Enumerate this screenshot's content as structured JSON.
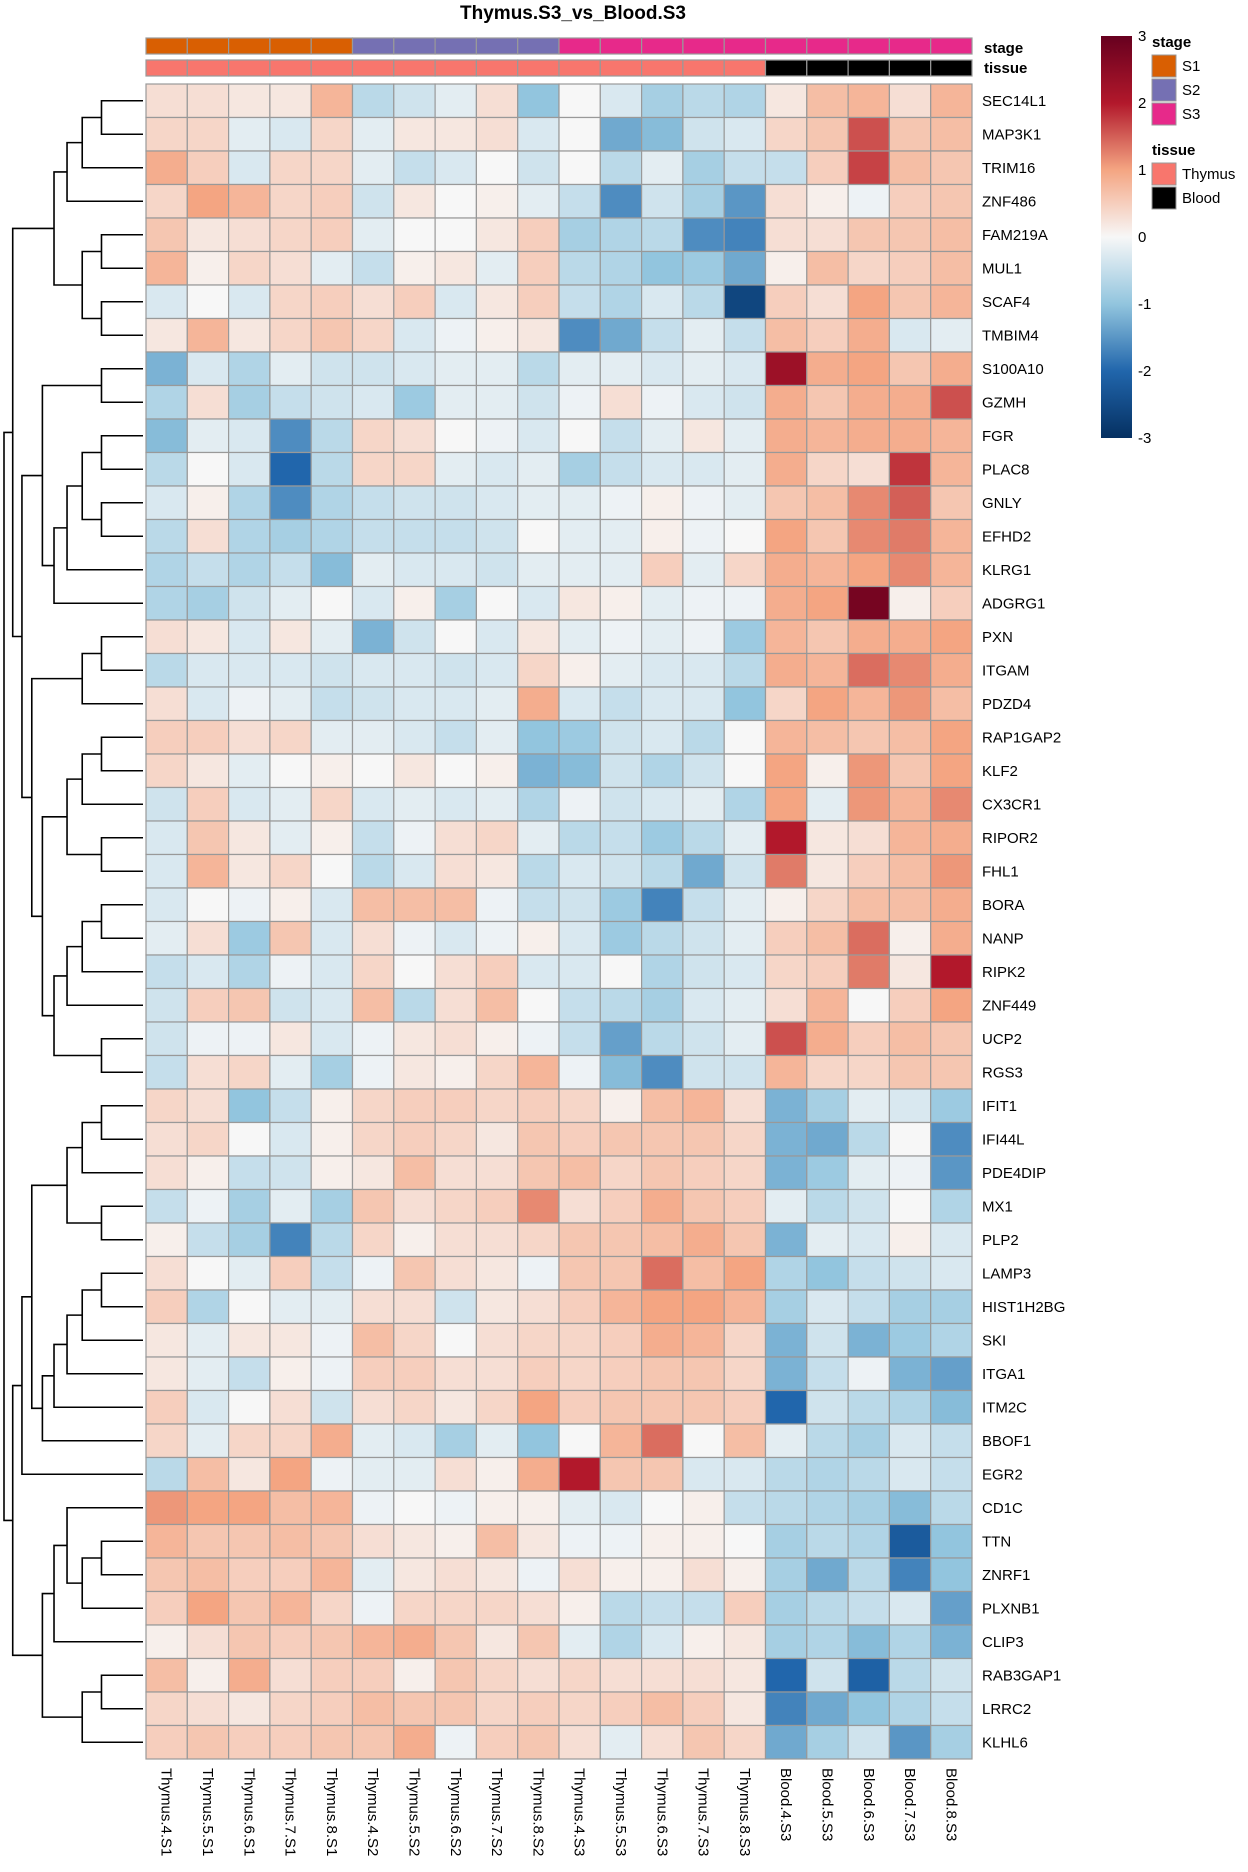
{
  "chart_data": {
    "type": "heatmap",
    "title": "Thymus.S3_vs_Blood.S3",
    "columns": [
      "Thymus.4.S1",
      "Thymus.5.S1",
      "Thymus.6.S1",
      "Thymus.7.S1",
      "Thymus.8.S1",
      "Thymus.4.S2",
      "Thymus.5.S2",
      "Thymus.6.S2",
      "Thymus.7.S2",
      "Thymus.8.S2",
      "Thymus.4.S3",
      "Thymus.5.S3",
      "Thymus.6.S3",
      "Thymus.7.S3",
      "Thymus.8.S3",
      "Blood.4.S3",
      "Blood.5.S3",
      "Blood.6.S3",
      "Blood.7.S3",
      "Blood.8.S3"
    ],
    "rows": [
      "SEC14L1",
      "MAP3K1",
      "TRIM16",
      "ZNF486",
      "FAM219A",
      "MUL1",
      "SCAF4",
      "TMBIM4",
      "S100A10",
      "GZMH",
      "FGR",
      "PLAC8",
      "GNLY",
      "EFHD2",
      "KLRG1",
      "ADGRG1",
      "PXN",
      "ITGAM",
      "PDZD4",
      "RAP1GAP2",
      "KLF2",
      "CX3CR1",
      "RIPOR2",
      "FHL1",
      "BORA",
      "NANP",
      "RIPK2",
      "ZNF449",
      "UCP2",
      "RGS3",
      "IFIT1",
      "IFI44L",
      "PDE4DIP",
      "MX1",
      "PLP2",
      "LAMP3",
      "HIST1H2BG",
      "SKI",
      "ITGA1",
      "ITM2C",
      "BBOF1",
      "EGR2",
      "CD1C",
      "TTN",
      "ZNRF1",
      "PLXNB1",
      "CLIP3",
      "RAB3GAP1",
      "LRRC2",
      "KLHL6"
    ],
    "values": [
      [
        0.3,
        0.3,
        0.2,
        0.2,
        0.8,
        -0.6,
        -0.4,
        -0.2,
        0.3,
        -1.0,
        0.0,
        -0.3,
        -0.8,
        -0.6,
        -0.7,
        0.2,
        0.7,
        0.8,
        0.3,
        0.8
      ],
      [
        0.4,
        0.4,
        -0.2,
        -0.3,
        0.4,
        -0.2,
        0.2,
        0.2,
        0.3,
        -0.3,
        0.0,
        -1.3,
        -1.1,
        -0.4,
        -0.3,
        0.4,
        0.6,
        1.6,
        0.6,
        0.7
      ],
      [
        0.9,
        0.5,
        -0.3,
        0.4,
        0.4,
        -0.2,
        -0.5,
        -0.3,
        0.0,
        -0.4,
        0.0,
        -0.6,
        -0.2,
        -0.8,
        -0.5,
        -0.5,
        0.5,
        1.7,
        0.7,
        0.6
      ],
      [
        0.4,
        1.0,
        0.8,
        0.4,
        0.5,
        -0.4,
        0.2,
        0.0,
        0.1,
        -0.2,
        -0.5,
        -1.6,
        -0.4,
        -0.8,
        -1.5,
        0.3,
        0.1,
        -0.1,
        0.5,
        0.6
      ],
      [
        0.6,
        0.2,
        0.3,
        0.4,
        0.5,
        -0.2,
        0.0,
        0.0,
        0.2,
        0.5,
        -0.8,
        -0.7,
        -0.6,
        -1.6,
        -1.7,
        0.3,
        0.3,
        0.6,
        0.6,
        0.7
      ],
      [
        0.8,
        0.1,
        0.4,
        0.3,
        -0.2,
        -0.5,
        0.1,
        0.2,
        -0.2,
        0.5,
        -0.6,
        -0.7,
        -1.0,
        -0.9,
        -1.3,
        0.1,
        0.7,
        0.4,
        0.5,
        0.7
      ],
      [
        -0.3,
        0.0,
        -0.3,
        0.4,
        0.5,
        0.3,
        0.5,
        -0.3,
        0.2,
        0.5,
        -0.5,
        -0.7,
        -0.3,
        -0.6,
        -2.6,
        0.5,
        0.3,
        1.0,
        0.6,
        0.8
      ],
      [
        0.2,
        0.8,
        0.2,
        0.4,
        0.6,
        0.4,
        -0.3,
        -0.1,
        0.1,
        0.2,
        -1.6,
        -1.3,
        -0.5,
        -0.2,
        -0.5,
        0.7,
        0.5,
        0.9,
        -0.3,
        -0.2
      ],
      [
        -1.2,
        -0.3,
        -0.7,
        -0.2,
        -0.4,
        -0.4,
        -0.3,
        -0.2,
        -0.2,
        -0.6,
        -0.2,
        -0.2,
        -0.3,
        -0.2,
        -0.3,
        2.3,
        0.9,
        1.0,
        0.6,
        0.9
      ],
      [
        -0.7,
        0.3,
        -0.8,
        -0.5,
        -0.4,
        -0.3,
        -0.9,
        -0.2,
        -0.2,
        -0.4,
        -0.1,
        0.3,
        -0.1,
        -0.3,
        -0.4,
        0.9,
        0.6,
        0.9,
        0.9,
        1.6
      ],
      [
        -1.1,
        -0.2,
        -0.3,
        -1.6,
        -0.6,
        0.4,
        0.3,
        0.0,
        -0.1,
        -0.3,
        0.0,
        -0.5,
        -0.2,
        0.2,
        -0.2,
        0.9,
        0.8,
        0.9,
        0.9,
        0.8
      ],
      [
        -0.6,
        0.0,
        -0.3,
        -2.0,
        -0.6,
        0.4,
        0.4,
        -0.2,
        -0.3,
        -0.2,
        -0.8,
        -0.5,
        -0.3,
        -0.3,
        -0.2,
        0.9,
        0.4,
        0.3,
        1.8,
        0.8
      ],
      [
        -0.3,
        0.1,
        -0.7,
        -1.6,
        -0.7,
        -0.5,
        -0.4,
        -0.4,
        -0.3,
        -0.2,
        -0.2,
        -0.1,
        0.1,
        -0.1,
        -0.2,
        0.6,
        0.7,
        1.2,
        1.5,
        0.6
      ],
      [
        -0.6,
        0.3,
        -0.7,
        -0.8,
        -0.7,
        -0.5,
        -0.5,
        -0.5,
        -0.4,
        0.0,
        -0.2,
        -0.2,
        0.1,
        -0.1,
        0.0,
        1.0,
        0.6,
        1.2,
        1.3,
        0.8
      ],
      [
        -0.7,
        -0.5,
        -0.7,
        -0.5,
        -1.1,
        -0.2,
        -0.3,
        -0.3,
        -0.4,
        -0.2,
        -0.2,
        -0.2,
        0.5,
        -0.2,
        0.4,
        0.9,
        0.8,
        1.0,
        1.2,
        0.8
      ],
      [
        -0.7,
        -0.8,
        -0.4,
        -0.2,
        0.0,
        -0.3,
        0.1,
        -0.8,
        0.0,
        -0.3,
        0.2,
        0.1,
        -0.2,
        -0.1,
        -0.1,
        0.9,
        1.0,
        2.8,
        0.1,
        0.5
      ],
      [
        0.3,
        0.2,
        -0.3,
        0.2,
        -0.2,
        -1.2,
        -0.4,
        0.0,
        -0.3,
        0.2,
        -0.2,
        -0.1,
        -0.2,
        -0.1,
        -0.9,
        0.8,
        0.6,
        0.9,
        0.9,
        1.0
      ],
      [
        -0.6,
        -0.3,
        -0.3,
        -0.3,
        -0.4,
        -0.3,
        -0.3,
        -0.4,
        -0.3,
        0.4,
        0.1,
        -0.2,
        -0.3,
        -0.3,
        -0.6,
        0.9,
        0.8,
        1.4,
        1.2,
        0.9
      ],
      [
        0.3,
        -0.3,
        -0.1,
        -0.2,
        -0.5,
        -0.4,
        -0.3,
        -0.3,
        -0.2,
        0.9,
        -0.3,
        -0.5,
        -0.3,
        -0.3,
        -1.0,
        0.4,
        1.0,
        0.8,
        1.1,
        0.7
      ],
      [
        0.5,
        0.5,
        0.3,
        0.4,
        -0.2,
        -0.2,
        -0.3,
        -0.5,
        -0.2,
        -1.0,
        -0.9,
        -0.4,
        -0.3,
        -0.6,
        0.0,
        0.8,
        0.7,
        0.6,
        0.7,
        1.0
      ],
      [
        0.4,
        0.2,
        -0.2,
        0.0,
        0.1,
        0.0,
        0.2,
        0.0,
        0.1,
        -1.2,
        -1.1,
        -0.4,
        -0.7,
        -0.4,
        0.0,
        1.0,
        0.1,
        1.1,
        0.6,
        1.0
      ],
      [
        -0.4,
        0.5,
        -0.3,
        -0.2,
        0.4,
        -0.3,
        -0.2,
        -0.3,
        -0.2,
        -0.7,
        -0.1,
        -0.4,
        -0.3,
        -0.2,
        -0.7,
        1.0,
        -0.2,
        1.1,
        0.8,
        1.2
      ],
      [
        -0.3,
        0.6,
        0.2,
        -0.2,
        0.1,
        -0.5,
        -0.1,
        0.3,
        0.4,
        -0.2,
        -0.6,
        -0.5,
        -0.9,
        -0.6,
        -0.2,
        2.0,
        0.2,
        0.3,
        0.8,
        0.9
      ],
      [
        -0.3,
        0.8,
        0.2,
        0.4,
        0.0,
        -0.6,
        -0.3,
        0.3,
        0.2,
        -0.6,
        -0.3,
        -0.4,
        -0.6,
        -1.3,
        -0.4,
        1.3,
        0.2,
        0.5,
        0.7,
        1.1
      ],
      [
        -0.3,
        0.0,
        -0.1,
        0.1,
        -0.3,
        0.7,
        0.7,
        0.7,
        -0.1,
        -0.5,
        -0.4,
        -0.9,
        -1.7,
        -0.5,
        -0.2,
        0.1,
        0.4,
        0.7,
        0.7,
        0.9
      ],
      [
        -0.2,
        0.3,
        -0.9,
        0.6,
        -0.3,
        0.3,
        -0.1,
        -0.3,
        -0.1,
        0.1,
        -0.3,
        -0.9,
        -0.6,
        -0.4,
        -0.2,
        0.5,
        0.7,
        1.4,
        0.1,
        0.9
      ],
      [
        -0.5,
        -0.3,
        -0.7,
        -0.1,
        -0.3,
        0.4,
        0.0,
        0.3,
        0.5,
        -0.3,
        -0.3,
        0.0,
        -0.7,
        -0.4,
        -0.3,
        0.4,
        0.5,
        1.3,
        0.2,
        2.0
      ],
      [
        -0.4,
        0.5,
        0.6,
        -0.4,
        -0.3,
        0.7,
        -0.6,
        0.3,
        0.7,
        0.0,
        -0.5,
        -0.6,
        -0.8,
        -0.3,
        -0.2,
        0.3,
        0.8,
        0.0,
        0.5,
        1.0
      ],
      [
        -0.4,
        -0.1,
        -0.1,
        0.2,
        -0.3,
        -0.1,
        0.2,
        0.3,
        0.1,
        -0.1,
        -0.5,
        -1.4,
        -0.6,
        -0.4,
        -0.2,
        1.6,
        0.9,
        0.5,
        0.7,
        0.6
      ],
      [
        -0.5,
        0.3,
        0.4,
        -0.2,
        -0.8,
        -0.1,
        0.2,
        0.1,
        0.4,
        0.8,
        -0.1,
        -1.1,
        -1.6,
        -0.4,
        -0.4,
        0.8,
        0.4,
        0.4,
        0.6,
        0.6
      ],
      [
        0.4,
        0.3,
        -1.0,
        -0.5,
        0.1,
        0.4,
        0.5,
        0.5,
        0.4,
        0.5,
        0.4,
        0.1,
        0.7,
        0.8,
        0.3,
        -1.2,
        -0.8,
        -0.2,
        -0.3,
        -0.9
      ],
      [
        0.3,
        0.4,
        0.0,
        -0.3,
        0.1,
        0.4,
        0.5,
        0.4,
        0.2,
        0.6,
        0.5,
        0.6,
        0.6,
        0.6,
        0.4,
        -1.2,
        -1.3,
        -0.6,
        0.0,
        -1.6
      ],
      [
        0.3,
        0.1,
        -0.5,
        -0.4,
        0.1,
        0.2,
        0.7,
        0.3,
        0.3,
        0.6,
        0.7,
        0.4,
        0.6,
        0.5,
        0.4,
        -1.2,
        -0.9,
        -0.2,
        -0.1,
        -1.5
      ],
      [
        -0.5,
        -0.1,
        -0.8,
        -0.2,
        -0.8,
        0.6,
        0.3,
        0.4,
        0.5,
        1.2,
        0.3,
        0.5,
        0.9,
        0.6,
        0.5,
        -0.2,
        -0.6,
        -0.4,
        0.0,
        -0.7
      ],
      [
        0.1,
        -0.5,
        -0.8,
        -1.7,
        -0.6,
        0.4,
        0.1,
        0.3,
        0.3,
        0.4,
        0.6,
        0.6,
        0.7,
        0.9,
        0.6,
        -1.2,
        -0.2,
        -0.3,
        0.1,
        -0.3
      ],
      [
        0.3,
        0.0,
        -0.2,
        0.5,
        -0.5,
        -0.1,
        0.6,
        0.3,
        0.2,
        -0.1,
        0.6,
        0.6,
        1.4,
        0.7,
        1.0,
        -0.7,
        -1.0,
        -0.5,
        -0.4,
        -0.3
      ],
      [
        0.5,
        -0.7,
        0.0,
        -0.2,
        -0.2,
        0.3,
        0.3,
        -0.4,
        0.2,
        0.3,
        0.5,
        0.8,
        1.0,
        1.0,
        0.8,
        -0.8,
        -0.3,
        -0.5,
        -0.8,
        -0.8
      ],
      [
        0.2,
        -0.2,
        0.2,
        0.2,
        -0.1,
        0.7,
        0.4,
        0.0,
        0.3,
        0.4,
        0.4,
        0.5,
        0.9,
        0.8,
        0.4,
        -1.2,
        -0.4,
        -1.2,
        -0.9,
        -0.7
      ],
      [
        0.2,
        -0.2,
        -0.5,
        0.1,
        -0.1,
        0.5,
        0.5,
        0.3,
        0.3,
        0.5,
        0.4,
        0.5,
        0.6,
        0.6,
        0.4,
        -1.2,
        -0.5,
        -0.1,
        -1.2,
        -1.4
      ],
      [
        0.5,
        -0.3,
        0.0,
        0.3,
        -0.4,
        0.3,
        0.4,
        0.2,
        0.4,
        1.0,
        0.5,
        0.6,
        0.6,
        0.6,
        0.5,
        -2.0,
        -0.4,
        -0.6,
        -0.7,
        -1.1
      ],
      [
        0.4,
        -0.2,
        0.4,
        0.4,
        0.9,
        -0.2,
        -0.3,
        -0.8,
        -0.2,
        -1.0,
        0.0,
        0.8,
        1.4,
        0.0,
        0.7,
        -0.2,
        -0.6,
        -0.8,
        -0.3,
        -0.5
      ],
      [
        -0.6,
        0.7,
        0.2,
        1.0,
        -0.1,
        -0.2,
        -0.2,
        0.3,
        0.1,
        0.9,
        2.0,
        0.6,
        0.6,
        -0.3,
        -0.3,
        -0.6,
        -0.7,
        -0.6,
        -0.3,
        -0.5
      ],
      [
        1.1,
        1.0,
        1.0,
        0.7,
        0.8,
        -0.1,
        0.0,
        -0.1,
        0.1,
        0.1,
        -0.2,
        -0.3,
        0.0,
        0.1,
        -0.5,
        -0.6,
        -0.7,
        -0.8,
        -1.1,
        -0.6
      ],
      [
        0.8,
        0.6,
        0.6,
        0.7,
        0.6,
        0.3,
        0.2,
        0.1,
        0.7,
        0.2,
        -0.1,
        -0.1,
        0.1,
        0.1,
        0.0,
        -0.8,
        -0.6,
        -0.7,
        -2.2,
        -1.0
      ],
      [
        0.6,
        0.7,
        0.5,
        0.5,
        0.8,
        -0.2,
        0.2,
        0.3,
        0.2,
        -0.1,
        0.3,
        0.1,
        0.1,
        0.3,
        0.1,
        -0.8,
        -1.3,
        -0.6,
        -1.7,
        -1.0
      ],
      [
        0.5,
        1.0,
        0.6,
        0.8,
        0.4,
        -0.1,
        0.4,
        0.4,
        0.4,
        0.3,
        0.1,
        -0.6,
        -0.5,
        -0.5,
        0.5,
        -0.8,
        -0.6,
        -0.5,
        -0.3,
        -1.4
      ],
      [
        0.1,
        0.3,
        0.6,
        0.5,
        0.6,
        0.8,
        0.9,
        0.6,
        0.2,
        0.6,
        -0.2,
        -0.7,
        -0.3,
        0.1,
        0.2,
        -0.8,
        -0.7,
        -1.1,
        -0.7,
        -1.2
      ],
      [
        0.7,
        0.1,
        0.9,
        0.3,
        0.5,
        0.5,
        0.1,
        0.6,
        0.4,
        0.3,
        0.4,
        0.3,
        0.3,
        0.3,
        0.2,
        -2.0,
        -0.4,
        -2.1,
        -0.6,
        -0.4
      ],
      [
        0.4,
        0.3,
        0.2,
        0.4,
        0.5,
        0.7,
        0.6,
        0.6,
        0.4,
        0.5,
        0.4,
        0.5,
        0.7,
        0.5,
        0.2,
        -1.7,
        -1.3,
        -1.0,
        -0.7,
        -0.5
      ],
      [
        0.5,
        0.6,
        0.5,
        0.5,
        0.6,
        0.6,
        0.9,
        -0.1,
        0.5,
        0.6,
        0.3,
        -0.2,
        0.3,
        0.6,
        0.4,
        -1.3,
        -0.8,
        -0.4,
        -1.5,
        -0.8
      ]
    ],
    "color_scale": {
      "min": -3,
      "max": 3,
      "low_color": "#053061",
      "mid_color": "#F7F7F7",
      "high_color": "#67001F",
      "ticks": [
        3,
        2,
        1,
        0,
        -1,
        -2,
        -3
      ]
    },
    "annotations": {
      "stage": [
        "S1",
        "S1",
        "S1",
        "S1",
        "S1",
        "S2",
        "S2",
        "S2",
        "S2",
        "S2",
        "S3",
        "S3",
        "S3",
        "S3",
        "S3",
        "S3",
        "S3",
        "S3",
        "S3",
        "S3"
      ],
      "tissue": [
        "Thymus",
        "Thymus",
        "Thymus",
        "Thymus",
        "Thymus",
        "Thymus",
        "Thymus",
        "Thymus",
        "Thymus",
        "Thymus",
        "Thymus",
        "Thymus",
        "Thymus",
        "Thymus",
        "Thymus",
        "Blood",
        "Blood",
        "Blood",
        "Blood",
        "Blood"
      ]
    },
    "legend": {
      "stage": {
        "title": "stage",
        "items": [
          {
            "label": "S1",
            "color": "#D95F02"
          },
          {
            "label": "S2",
            "color": "#7570B3"
          },
          {
            "label": "S3",
            "color": "#E7298A"
          }
        ]
      },
      "tissue": {
        "title": "tissue",
        "items": [
          {
            "label": "Thymus",
            "color": "#F8766D"
          },
          {
            "label": "Blood",
            "color": "#000000"
          }
        ]
      }
    },
    "row_dendrogram": [
      [
        0,
        1,
        0
      ],
      [
        50,
        2,
        0
      ],
      [
        51,
        3,
        0
      ],
      [
        4,
        5,
        0
      ],
      [
        6,
        7,
        0
      ],
      [
        53,
        54,
        0
      ],
      [
        52,
        55,
        0
      ],
      [
        10,
        11,
        0
      ],
      [
        12,
        13,
        0
      ],
      [
        57,
        58,
        0
      ],
      [
        59,
        14,
        0
      ],
      [
        60,
        15,
        0
      ],
      [
        8,
        9,
        0
      ],
      [
        62,
        61,
        0
      ],
      [
        16,
        17,
        0
      ],
      [
        64,
        18,
        0
      ],
      [
        19,
        20,
        0
      ],
      [
        66,
        21,
        0
      ],
      [
        22,
        23,
        0
      ],
      [
        67,
        68,
        0
      ],
      [
        24,
        25,
        0
      ],
      [
        70,
        26,
        0
      ],
      [
        71,
        27,
        0
      ],
      [
        28,
        29,
        0
      ],
      [
        72,
        73,
        0
      ],
      [
        69,
        74,
        0
      ],
      [
        65,
        75,
        0
      ],
      [
        63,
        76,
        0
      ],
      [
        56,
        77,
        0
      ],
      [
        30,
        31,
        0
      ],
      [
        79,
        32,
        0
      ],
      [
        33,
        34,
        0
      ],
      [
        80,
        81,
        0
      ],
      [
        35,
        36,
        0
      ],
      [
        83,
        37,
        0
      ],
      [
        84,
        38,
        0
      ],
      [
        85,
        39,
        0
      ],
      [
        86,
        40,
        0
      ],
      [
        82,
        87,
        0
      ],
      [
        88,
        41,
        0
      ],
      [
        43,
        44,
        0
      ],
      [
        90,
        45,
        0
      ],
      [
        42,
        91,
        0
      ],
      [
        47,
        48,
        0
      ],
      [
        93,
        49,
        0
      ],
      [
        92,
        46,
        0
      ],
      [
        95,
        94,
        0
      ],
      [
        89,
        96,
        0
      ],
      [
        78,
        97,
        0
      ]
    ]
  }
}
